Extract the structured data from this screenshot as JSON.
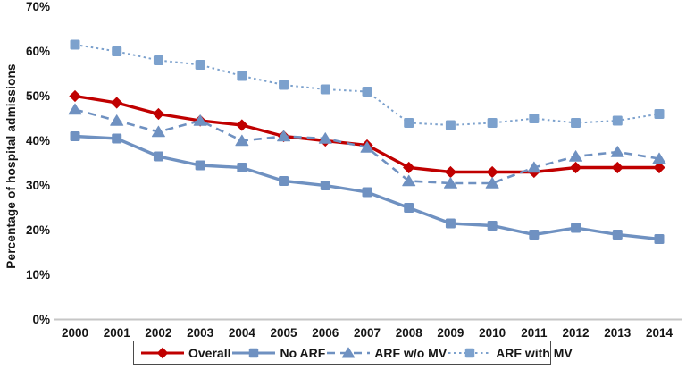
{
  "figure": {
    "background": "#ffffff",
    "axis_line_color": "#c6c6c6",
    "text_color": "#151515"
  },
  "chart_data": {
    "type": "line",
    "ylabel": "Percentage of hospital admissions",
    "x": [
      "2000",
      "2001",
      "2002",
      "2003",
      "2004",
      "2005",
      "2006",
      "2007",
      "2008",
      "2009",
      "2010",
      "2011",
      "2012",
      "2013",
      "2014"
    ],
    "y_ticks": [
      "0%",
      "10%",
      "20%",
      "30%",
      "40%",
      "50%",
      "60%",
      "70%"
    ],
    "ylim": [
      0,
      70
    ],
    "y_tick_step": 10,
    "grid": false,
    "legend_position": "bottom",
    "series": [
      {
        "name": "Overall",
        "color": "#c00000",
        "line_style": "solid",
        "marker": "diamond",
        "values": [
          50,
          48.5,
          46,
          44.5,
          43.5,
          41,
          40,
          39,
          34,
          33,
          33,
          33,
          34,
          34,
          34
        ]
      },
      {
        "name": "No ARF",
        "color": "#6f91c1",
        "line_style": "solid",
        "marker": "square",
        "values": [
          41,
          40.5,
          36.5,
          34.5,
          34,
          31,
          30,
          28.5,
          25,
          21.5,
          21,
          19,
          20.5,
          19,
          18
        ]
      },
      {
        "name": "ARF w/o MV",
        "color": "#6f91c1",
        "line_style": "dashed",
        "marker": "triangle",
        "values": [
          47,
          44.5,
          42,
          44.5,
          40,
          41,
          40.5,
          38.5,
          31,
          30.5,
          30.5,
          34,
          36.5,
          37.5,
          36
        ]
      },
      {
        "name": "ARF with MV",
        "color": "#7ca1cd",
        "line_style": "dotted",
        "marker": "square",
        "values": [
          61.5,
          60,
          58,
          57,
          54.5,
          52.5,
          51.5,
          51,
          44,
          43.5,
          44,
          45,
          44,
          44.5,
          46
        ]
      }
    ]
  }
}
